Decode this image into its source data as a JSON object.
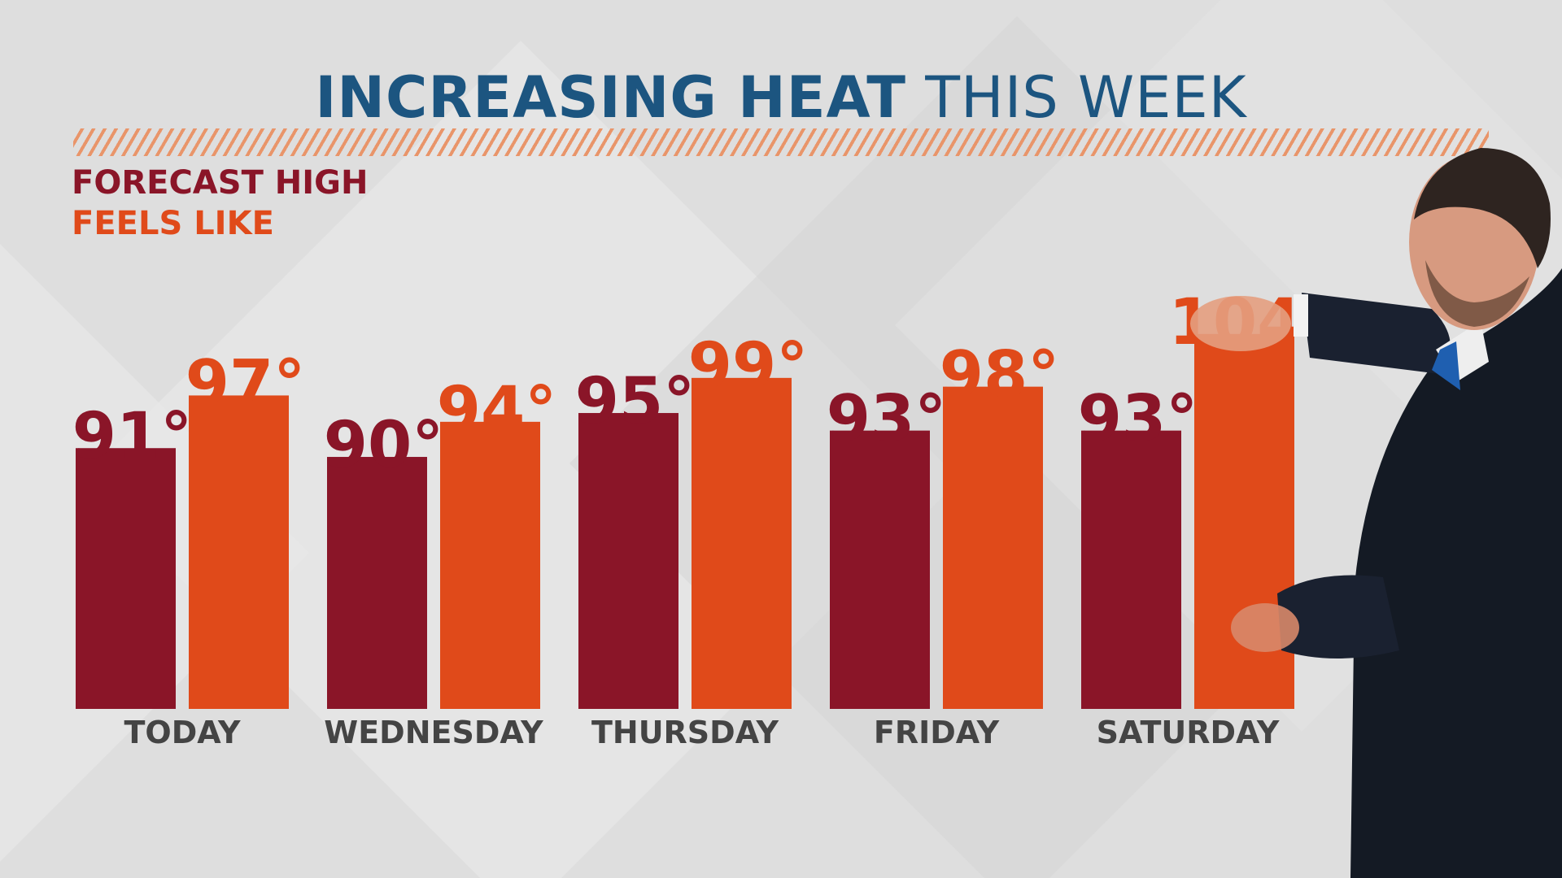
{
  "title": {
    "bold": "INCREASING HEAT",
    "light": "THIS WEEK"
  },
  "legend": {
    "high": "FORECAST HIGH",
    "feels": "FEELS LIKE"
  },
  "colors": {
    "high": "#8a1528",
    "feels": "#e04a1a",
    "title": "#1c5580",
    "stripe": "#e9956a",
    "category": "#444444"
  },
  "chart_data": {
    "type": "bar",
    "title": "INCREASING HEAT THIS WEEK",
    "categories": [
      "TODAY",
      "WEDNESDAY",
      "THURSDAY",
      "FRIDAY",
      "SATURDAY"
    ],
    "series": [
      {
        "name": "FORECAST HIGH",
        "values": [
          91,
          90,
          95,
          93,
          93
        ],
        "labels": [
          "91°",
          "90°",
          "95°",
          "93°",
          "93°"
        ]
      },
      {
        "name": "FEELS LIKE",
        "values": [
          97,
          94,
          99,
          98,
          104
        ],
        "labels": [
          "97°",
          "94°",
          "99°",
          "98°",
          "104°"
        ]
      }
    ],
    "grid": false,
    "legend_position": "top-left"
  }
}
